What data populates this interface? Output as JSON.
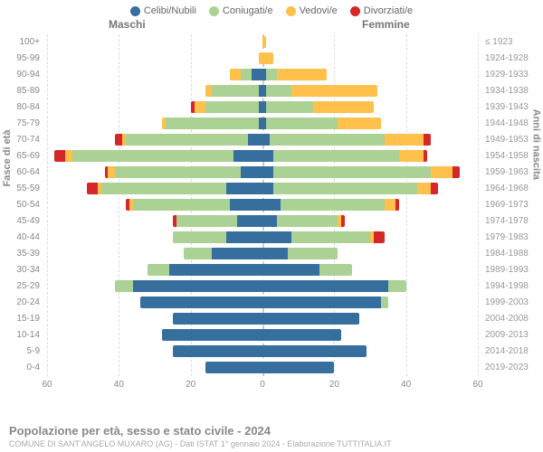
{
  "legend": [
    {
      "label": "Celibi/Nubili",
      "color": "#366f9e"
    },
    {
      "label": "Coniugati/e",
      "color": "#abd194"
    },
    {
      "label": "Vedovi/e",
      "color": "#ffc04c"
    },
    {
      "label": "Divorziati/e",
      "color": "#d62728"
    }
  ],
  "header": {
    "male": "Maschi",
    "female": "Femmine"
  },
  "axis": {
    "left_title": "Fasce di età",
    "right_title": "Anni di nascita",
    "max": 60,
    "ticks": [
      60,
      40,
      20,
      0,
      20,
      40,
      60
    ]
  },
  "footer": {
    "title": "Popolazione per età, sesso e stato civile - 2024",
    "subtitle": "COMUNE DI SANT'ANGELO MUXARO (AG) - Dati ISTAT 1° gennaio 2024 - Elaborazione TUTTITALIA.IT"
  },
  "colors": {
    "single": "#366f9e",
    "married": "#abd194",
    "widow": "#ffc04c",
    "divorced": "#d62728",
    "grid": "#dddddd",
    "bg": "#ffffff"
  },
  "rows": [
    {
      "age": "100+",
      "year": "≤ 1923",
      "m": [
        0,
        0,
        0,
        0
      ],
      "f": [
        0,
        0,
        1,
        0
      ]
    },
    {
      "age": "95-99",
      "year": "1924-1928",
      "m": [
        0,
        0,
        1,
        0
      ],
      "f": [
        0,
        0,
        3,
        0
      ]
    },
    {
      "age": "90-94",
      "year": "1929-1933",
      "m": [
        3,
        3,
        3,
        0
      ],
      "f": [
        1,
        3,
        14,
        0
      ]
    },
    {
      "age": "85-89",
      "year": "1934-1938",
      "m": [
        1,
        13,
        2,
        0
      ],
      "f": [
        1,
        7,
        24,
        0
      ]
    },
    {
      "age": "80-84",
      "year": "1939-1943",
      "m": [
        1,
        15,
        3,
        1
      ],
      "f": [
        1,
        13,
        17,
        0
      ]
    },
    {
      "age": "75-79",
      "year": "1944-1948",
      "m": [
        1,
        26,
        1,
        0
      ],
      "f": [
        1,
        20,
        12,
        0
      ]
    },
    {
      "age": "70-74",
      "year": "1949-1953",
      "m": [
        4,
        34,
        1,
        2
      ],
      "f": [
        2,
        32,
        11,
        2
      ]
    },
    {
      "age": "65-69",
      "year": "1954-1958",
      "m": [
        8,
        45,
        2,
        3
      ],
      "f": [
        3,
        35,
        7,
        1
      ]
    },
    {
      "age": "60-64",
      "year": "1959-1963",
      "m": [
        6,
        35,
        2,
        1
      ],
      "f": [
        3,
        44,
        6,
        2
      ]
    },
    {
      "age": "55-59",
      "year": "1964-1968",
      "m": [
        10,
        35,
        1,
        3
      ],
      "f": [
        3,
        40,
        4,
        2
      ]
    },
    {
      "age": "50-54",
      "year": "1969-1973",
      "m": [
        9,
        27,
        1,
        1
      ],
      "f": [
        5,
        29,
        3,
        1
      ]
    },
    {
      "age": "45-49",
      "year": "1974-1978",
      "m": [
        7,
        17,
        0,
        1
      ],
      "f": [
        4,
        17,
        1,
        1
      ]
    },
    {
      "age": "40-44",
      "year": "1979-1983",
      "m": [
        10,
        15,
        0,
        0
      ],
      "f": [
        8,
        22,
        1,
        3
      ]
    },
    {
      "age": "35-39",
      "year": "1984-1988",
      "m": [
        14,
        8,
        0,
        0
      ],
      "f": [
        7,
        14,
        0,
        0
      ]
    },
    {
      "age": "30-34",
      "year": "1989-1993",
      "m": [
        26,
        6,
        0,
        0
      ],
      "f": [
        16,
        9,
        0,
        0
      ]
    },
    {
      "age": "25-29",
      "year": "1994-1998",
      "m": [
        36,
        5,
        0,
        0
      ],
      "f": [
        35,
        5,
        0,
        0
      ]
    },
    {
      "age": "20-24",
      "year": "1999-2003",
      "m": [
        34,
        0,
        0,
        0
      ],
      "f": [
        33,
        2,
        0,
        0
      ]
    },
    {
      "age": "15-19",
      "year": "2004-2008",
      "m": [
        25,
        0,
        0,
        0
      ],
      "f": [
        27,
        0,
        0,
        0
      ]
    },
    {
      "age": "10-14",
      "year": "2009-2013",
      "m": [
        28,
        0,
        0,
        0
      ],
      "f": [
        22,
        0,
        0,
        0
      ]
    },
    {
      "age": "5-9",
      "year": "2014-2018",
      "m": [
        25,
        0,
        0,
        0
      ],
      "f": [
        29,
        0,
        0,
        0
      ]
    },
    {
      "age": "0-4",
      "year": "2019-2023",
      "m": [
        16,
        0,
        0,
        0
      ],
      "f": [
        20,
        0,
        0,
        0
      ]
    }
  ]
}
